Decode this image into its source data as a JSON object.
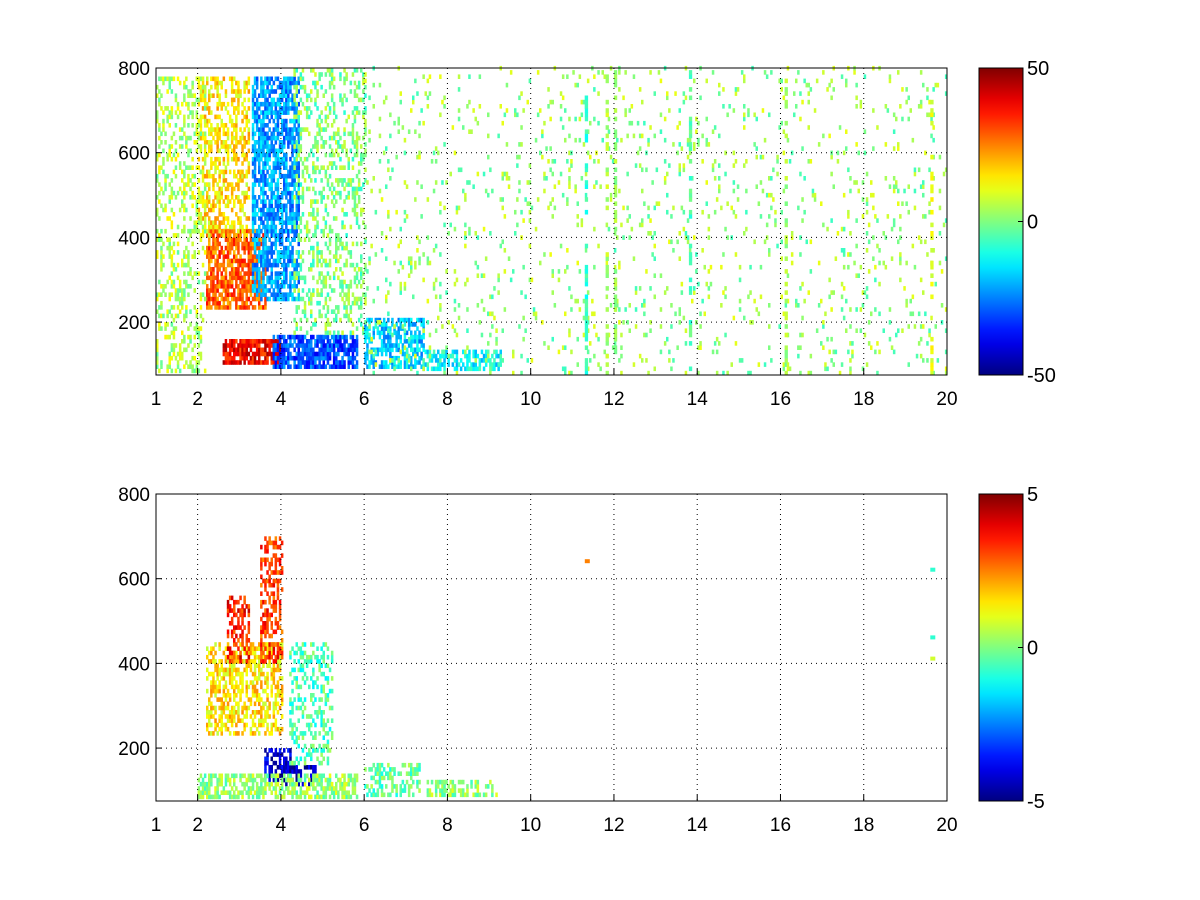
{
  "chart_data": [
    {
      "type": "heatmap",
      "title": "",
      "xlabel": "",
      "ylabel": "",
      "xlim": [
        1,
        20
      ],
      "ylim": [
        75,
        800
      ],
      "xticks": [
        1,
        2,
        4,
        6,
        8,
        10,
        12,
        14,
        16,
        18,
        20
      ],
      "yticks": [
        200,
        400,
        600,
        800
      ],
      "grid": true,
      "colormap": "jet",
      "colorbar": {
        "ticks": [
          -50,
          0,
          50
        ],
        "range": [
          -50,
          50
        ]
      },
      "regions": [
        {
          "x": [
            2.2,
            3.6
          ],
          "y": [
            230,
            420
          ],
          "value": 28,
          "density": 0.75
        },
        {
          "x": [
            2.0,
            3.2
          ],
          "y": [
            400,
            780
          ],
          "value": 15,
          "density": 0.45
        },
        {
          "x": [
            3.3,
            4.4
          ],
          "y": [
            250,
            780
          ],
          "value": -22,
          "density": 0.7
        },
        {
          "x": [
            2.6,
            4.0
          ],
          "y": [
            100,
            160
          ],
          "value": 38,
          "density": 0.85
        },
        {
          "x": [
            3.8,
            5.8
          ],
          "y": [
            90,
            170
          ],
          "value": -30,
          "density": 0.8
        },
        {
          "x": [
            1.0,
            2.2
          ],
          "y": [
            80,
            780
          ],
          "value": 5,
          "density": 0.3
        },
        {
          "x": [
            4.3,
            6.0
          ],
          "y": [
            170,
            800
          ],
          "value": 0,
          "density": 0.3
        },
        {
          "x": [
            6.0,
            7.4
          ],
          "y": [
            90,
            210
          ],
          "value": -18,
          "density": 0.6
        },
        {
          "x": [
            7.4,
            9.3
          ],
          "y": [
            85,
            130
          ],
          "value": -12,
          "density": 0.6
        },
        {
          "x": [
            6.0,
            20.0
          ],
          "y": [
            75,
            800
          ],
          "value": 2,
          "density": 0.06
        }
      ],
      "columns": [
        {
          "x": 11.3,
          "value": -8
        },
        {
          "x": 11.8,
          "value": 5
        },
        {
          "x": 12.0,
          "value": 3
        },
        {
          "x": 13.8,
          "value": -5
        },
        {
          "x": 16.1,
          "value": 4
        },
        {
          "x": 19.6,
          "value": 10
        }
      ]
    },
    {
      "type": "heatmap",
      "title": "",
      "xlabel": "",
      "ylabel": "",
      "xlim": [
        1,
        20
      ],
      "ylim": [
        75,
        800
      ],
      "xticks": [
        1,
        2,
        4,
        6,
        8,
        10,
        12,
        14,
        16,
        18,
        20
      ],
      "yticks": [
        200,
        400,
        600,
        800
      ],
      "grid": true,
      "colormap": "jet",
      "colorbar": {
        "ticks": [
          -5,
          0,
          5
        ],
        "range": [
          -5,
          5
        ]
      },
      "regions": [
        {
          "x": [
            2.2,
            4.0
          ],
          "y": [
            230,
            450
          ],
          "value": 1.5,
          "density": 0.55
        },
        {
          "x": [
            2.7,
            3.2
          ],
          "y": [
            400,
            560
          ],
          "value": 3.5,
          "density": 0.45
        },
        {
          "x": [
            3.5,
            4.0
          ],
          "y": [
            400,
            700
          ],
          "value": 3.2,
          "density": 0.5
        },
        {
          "x": [
            3.6,
            4.2
          ],
          "y": [
            120,
            200
          ],
          "value": -4.2,
          "density": 0.6
        },
        {
          "x": [
            4.0,
            4.8
          ],
          "y": [
            110,
            160
          ],
          "value": -4.5,
          "density": 0.55
        },
        {
          "x": [
            2.0,
            5.8
          ],
          "y": [
            80,
            140
          ],
          "value": 0.2,
          "density": 0.6
        },
        {
          "x": [
            4.2,
            5.2
          ],
          "y": [
            160,
            450
          ],
          "value": -0.5,
          "density": 0.3
        },
        {
          "x": [
            6.0,
            7.3
          ],
          "y": [
            85,
            160
          ],
          "value": -0.3,
          "density": 0.45
        },
        {
          "x": [
            7.5,
            9.2
          ],
          "y": [
            85,
            120
          ],
          "value": 0.2,
          "density": 0.45
        }
      ],
      "points": [
        {
          "x": 11.3,
          "y": 640,
          "value": 2.5
        },
        {
          "x": 19.6,
          "y": 620,
          "value": -0.8
        },
        {
          "x": 19.6,
          "y": 460,
          "value": -0.8
        },
        {
          "x": 19.6,
          "y": 410,
          "value": 0.8
        }
      ]
    }
  ]
}
